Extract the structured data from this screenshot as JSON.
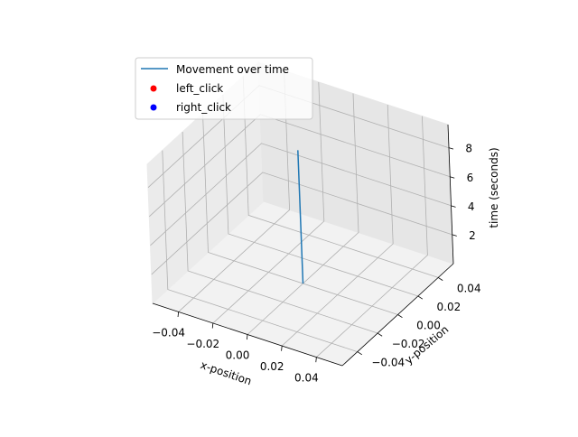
{
  "chart_data": {
    "type": "line",
    "projection": "3d",
    "title": "",
    "xlabel": "x-position",
    "ylabel": "y-position",
    "zlabel": "time (seconds)",
    "xlim": [
      -0.055,
      0.055
    ],
    "ylim": [
      -0.055,
      0.055
    ],
    "zlim": [
      0.0,
      9.6
    ],
    "xticks": [
      -0.04,
      -0.02,
      0.0,
      0.02,
      0.04
    ],
    "yticks": [
      -0.04,
      -0.02,
      0.0,
      0.02,
      0.04
    ],
    "zticks": [
      2,
      4,
      6,
      8
    ],
    "xtick_labels": [
      "−0.04",
      "−0.02",
      "0.00",
      "0.02",
      "0.04"
    ],
    "ytick_labels": [
      "−0.04",
      "−0.02",
      "0.00",
      "0.02",
      "0.04"
    ],
    "ztick_labels": [
      "2",
      "4",
      "6",
      "8"
    ],
    "grid": true,
    "legend_position": "top-left",
    "series": [
      {
        "name": "Movement over time",
        "kind": "line",
        "color": "#1f77b4",
        "x": [
          0.0,
          0.0
        ],
        "y": [
          0.0,
          0.0
        ],
        "z": [
          0.0,
          9.2
        ]
      },
      {
        "name": "left_click",
        "kind": "scatter",
        "color": "#ff0000",
        "x": [],
        "y": [],
        "z": []
      },
      {
        "name": "right_click",
        "kind": "scatter",
        "color": "#0000ff",
        "x": [],
        "y": [],
        "z": []
      }
    ]
  }
}
